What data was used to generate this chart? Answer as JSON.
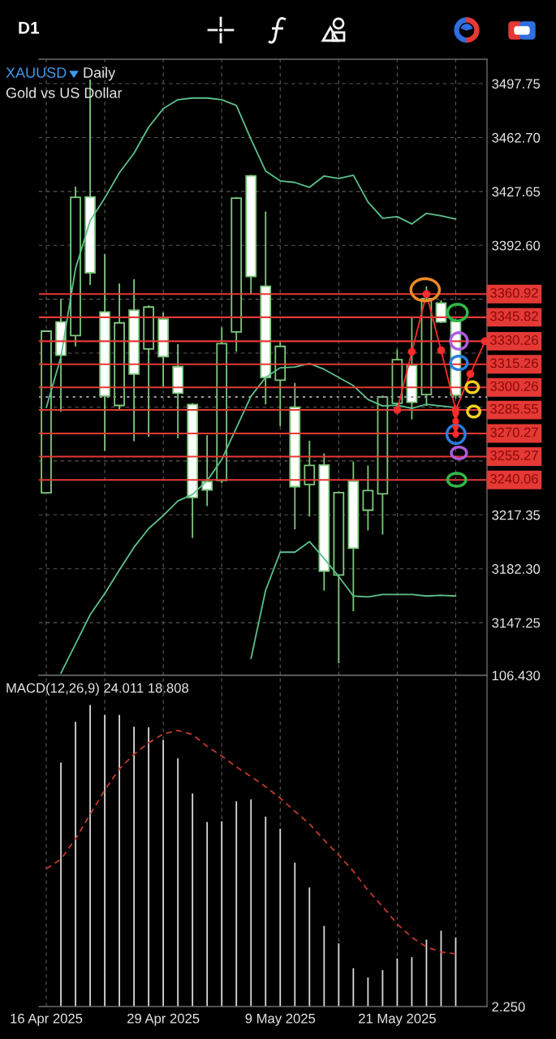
{
  "chart_data": [
    {
      "type": "candlestick",
      "title": "XAUUSD",
      "subtitle": "Gold vs US Dollar",
      "annotations": [
        "D1",
        "Daily"
      ],
      "categories": [
        null,
        null,
        null,
        null,
        null,
        null,
        null,
        null,
        null,
        null,
        null,
        null,
        null,
        null,
        null,
        null,
        null,
        null,
        null,
        null,
        null,
        null,
        null,
        null,
        null,
        null,
        null,
        null,
        null,
        null,
        null
      ],
      "ohlc": [
        [
          3231.7,
          3336.8,
          3231.7,
          3336.8
        ],
        [
          3342.8,
          3357.8,
          3284.6,
          3321.1
        ],
        [
          3334.0,
          3430.8,
          3326.9,
          3423.8
        ],
        [
          3424.1,
          3500.4,
          3366.9,
          3374.8
        ],
        [
          3349.3,
          3386.8,
          3259.1,
          3294.7
        ],
        [
          3288.5,
          3367.8,
          3286.0,
          3342.2
        ],
        [
          3350.4,
          3370.6,
          3265.3,
          3308.9
        ],
        [
          3325.2,
          3353.5,
          3268.0,
          3352.5
        ],
        [
          3344.6,
          3348.9,
          3300.5,
          3320.3
        ],
        [
          3313.7,
          3328.3,
          3267.1,
          3296.5
        ],
        [
          3289.1,
          3290.0,
          3202.3,
          3228.7
        ],
        [
          3238.9,
          3269.2,
          3223.1,
          3233.6
        ],
        [
          3239.8,
          3339.3,
          3238.0,
          3328.7
        ],
        [
          3336.3,
          3424.0,
          3323.4,
          3423.3
        ],
        [
          3437.8,
          3438.5,
          3360.7,
          3372.3
        ],
        [
          3366.0,
          3414.6,
          3289.1,
          3306.7
        ],
        [
          3304.9,
          3330.0,
          3275.0,
          3326.9
        ],
        [
          3287.3,
          3303.1,
          3208.0,
          3235.7
        ],
        [
          3237.1,
          3265.6,
          3216.3,
          3249.5
        ],
        [
          3249.8,
          3257.4,
          3168.1,
          3180.8
        ],
        [
          3178.2,
          3232.5,
          3120.9,
          3231.8
        ],
        [
          3239.2,
          3252.1,
          3154.7,
          3195.7
        ],
        [
          3220.4,
          3249.5,
          3207.2,
          3233.1
        ],
        [
          3231.0,
          3295.0,
          3204.6,
          3294.0
        ],
        [
          3289.9,
          3324.8,
          3287.0,
          3318.2
        ],
        [
          3314.6,
          3345.4,
          3279.4,
          3290.5
        ],
        [
          3295.6,
          3365.9,
          3288.2,
          3357.9
        ],
        [
          3355.1,
          3356.9,
          3342.0,
          3342.8
        ],
        [
          3343.1,
          3344.5,
          3293.0,
          3295.2
        ],
        null,
        null
      ],
      "colors": [
        "#000000",
        "#ffffff",
        "#000000",
        "#ffffff",
        "#ffffff",
        "#000000",
        "#ffffff",
        "#000000",
        "#ffffff",
        "#ffffff",
        "#ffffff",
        "#ffffff",
        "#000000",
        "#000000",
        "#ffffff",
        "#ffffff",
        "#000000",
        "#ffffff",
        "#000000",
        "#ffffff",
        "#000000",
        "#ffffff",
        "#000000",
        "#000000",
        "#000000",
        "#ffffff",
        "#000000",
        "#ffffff",
        "#ffffff",
        null,
        null
      ],
      "color": "#7cc97c",
      "series": [
        {
          "type": "line",
          "color": "#5cc08c",
          "values": [
            3287.1,
            3319.9,
            3377.5,
            3408.6,
            3423.4,
            3439.8,
            3452.5,
            3469.4,
            3481.5,
            3487.3,
            3488.4,
            3488.4,
            3487.3,
            3483.6,
            3461.5,
            3440.9,
            3434.5,
            3433.5,
            3430.3,
            3437.7,
            3436.1,
            3438.2,
            3420.8,
            3410.2,
            3411.3,
            3406.5,
            3413.4,
            3411.8,
            3409.7,
            null,
            null
          ]
        },
        {
          "type": "line",
          "color": "#5cc08c",
          "values": [
            null,
            3114.4,
            3133.4,
            3152.4,
            3166.2,
            3181.5,
            3196.3,
            3208.4,
            3216.9,
            3226.4,
            3230.6,
            3239.6,
            3253.3,
            3273.9,
            3294.5,
            3306.7,
            3313.0,
            3313.5,
            3315.7,
            3312.0,
            3306.7,
            3301.4,
            3292.4,
            3288.2,
            3288.7,
            3286.6,
            3289.2,
            3288.2,
            3287.1,
            null,
            null
          ]
        },
        {
          "type": "line",
          "color": "#5cc08c",
          "values": [
            null,
            null,
            null,
            null,
            null,
            null,
            null,
            null,
            null,
            null,
            null,
            null,
            null,
            null,
            3123.9,
            3168.3,
            3193.1,
            3193.1,
            3200.0,
            3188.9,
            3177.3,
            3164.6,
            3164.0,
            3165.6,
            3165.6,
            3165.6,
            3164.6,
            3165.1,
            3164.6,
            null,
            null
          ]
        },
        {
          "type": "line",
          "color": "#ff2a2a",
          "marker": "circle",
          "values": [
            null,
            null,
            null,
            null,
            null,
            null,
            null,
            null,
            null,
            null,
            null,
            null,
            null,
            null,
            null,
            null,
            null,
            null,
            null,
            null,
            null,
            null,
            null,
            null,
            3285.55,
            3323.4,
            3360.92,
            3324.3,
            3285.55,
            3308.9,
            3330.26
          ]
        }
      ],
      "ylim": [
        3113.0,
        3513.6
      ],
      "yticks": [
        3497.75,
        {
          "value": 3462.7,
          "label": "3462.70"
        },
        3427.65,
        {
          "value": 3392.6,
          "label": "3392.60"
        },
        {
          "value": 3357.55,
          "label": null
        },
        {
          "value": 3322.5,
          "label": null
        },
        {
          "value": 3287.45,
          "label": null
        },
        {
          "value": 3252.4,
          "label": null
        },
        3217.35,
        {
          "value": 3182.3,
          "label": "3182.30"
        },
        3147.25
      ],
      "grid": true,
      "tick_labels": "y",
      "ref_lines": [
        {
          "axis": "y",
          "value": 3360.92,
          "label": "3360.92",
          "color": "#e53935"
        },
        {
          "axis": "y",
          "value": 3345.82,
          "label": "3345.82",
          "color": "#e53935"
        },
        {
          "axis": "y",
          "value": 3330.26,
          "label": "3330.26",
          "color": "#e53935"
        },
        {
          "axis": "y",
          "value": 3315.26,
          "label": "3315.26",
          "color": "#e53935"
        },
        {
          "axis": "y",
          "value": 3300.26,
          "label": "3300.26",
          "color": "#e53935"
        },
        {
          "axis": "y",
          "value": 3285.55,
          "label": "3285.55",
          "color": "#e53935"
        },
        {
          "axis": "y",
          "value": 3270.27,
          "label": "3270.27",
          "color": "#e53935"
        },
        {
          "axis": "y",
          "value": 3255.27,
          "label": "3255.27",
          "color": "#e53935"
        },
        {
          "axis": "y",
          "value": 3240.06,
          "label": "3240.06",
          "color": "#e53935"
        },
        {
          "axis": "y",
          "value": 3294,
          "color": "#9a9a9a",
          "line_style": "dotted"
        }
      ]
    },
    {
      "type": "bar",
      "title": "MACD(12,26,9) 24.011 18.808",
      "categories": [
        "16 Apr 2025",
        null,
        null,
        null,
        null,
        null,
        null,
        null,
        "29 Apr 2025",
        null,
        null,
        null,
        null,
        null,
        null,
        null,
        "9 May 2025",
        null,
        null,
        null,
        null,
        null,
        null,
        null,
        "21 May 2025",
        null,
        null,
        null,
        null,
        null,
        null
      ],
      "series": [
        {
          "type": "bar",
          "color": "#d9d9d9",
          "values": [
            null,
            79.0,
            91.8,
            97.1,
            94.0,
            94.0,
            90.3,
            90.1,
            86.1,
            80.3,
            69.3,
            60.3,
            60.5,
            66.8,
            67.4,
            62.0,
            58.2,
            47.5,
            39.7,
            27.6,
            22.1,
            14.3,
            11.4,
            13.7,
            17.4,
            17.8,
            23.3,
            26.1,
            24.011,
            null,
            null
          ]
        },
        {
          "type": "line",
          "color": "#c0392b",
          "line_style": "dashed",
          "values": [
            45.5,
            48.6,
            55.0,
            62.7,
            70.3,
            77.0,
            81.6,
            85.2,
            88.0,
            89.1,
            87.8,
            84.1,
            81.1,
            77.6,
            74.6,
            71.4,
            67.8,
            63.7,
            59.7,
            54.6,
            49.9,
            44.8,
            38.8,
            33.7,
            28.2,
            24.0,
            21.0,
            19.4,
            18.808,
            null,
            null
          ]
        }
      ],
      "ylim": [
        2.25,
        106.43
      ],
      "yticks": [
        {
          "value": 106.43,
          "label": "106.430"
        },
        {
          "value": 2.25,
          "label": "2.250"
        }
      ],
      "grid": "x"
    }
  ]
}
